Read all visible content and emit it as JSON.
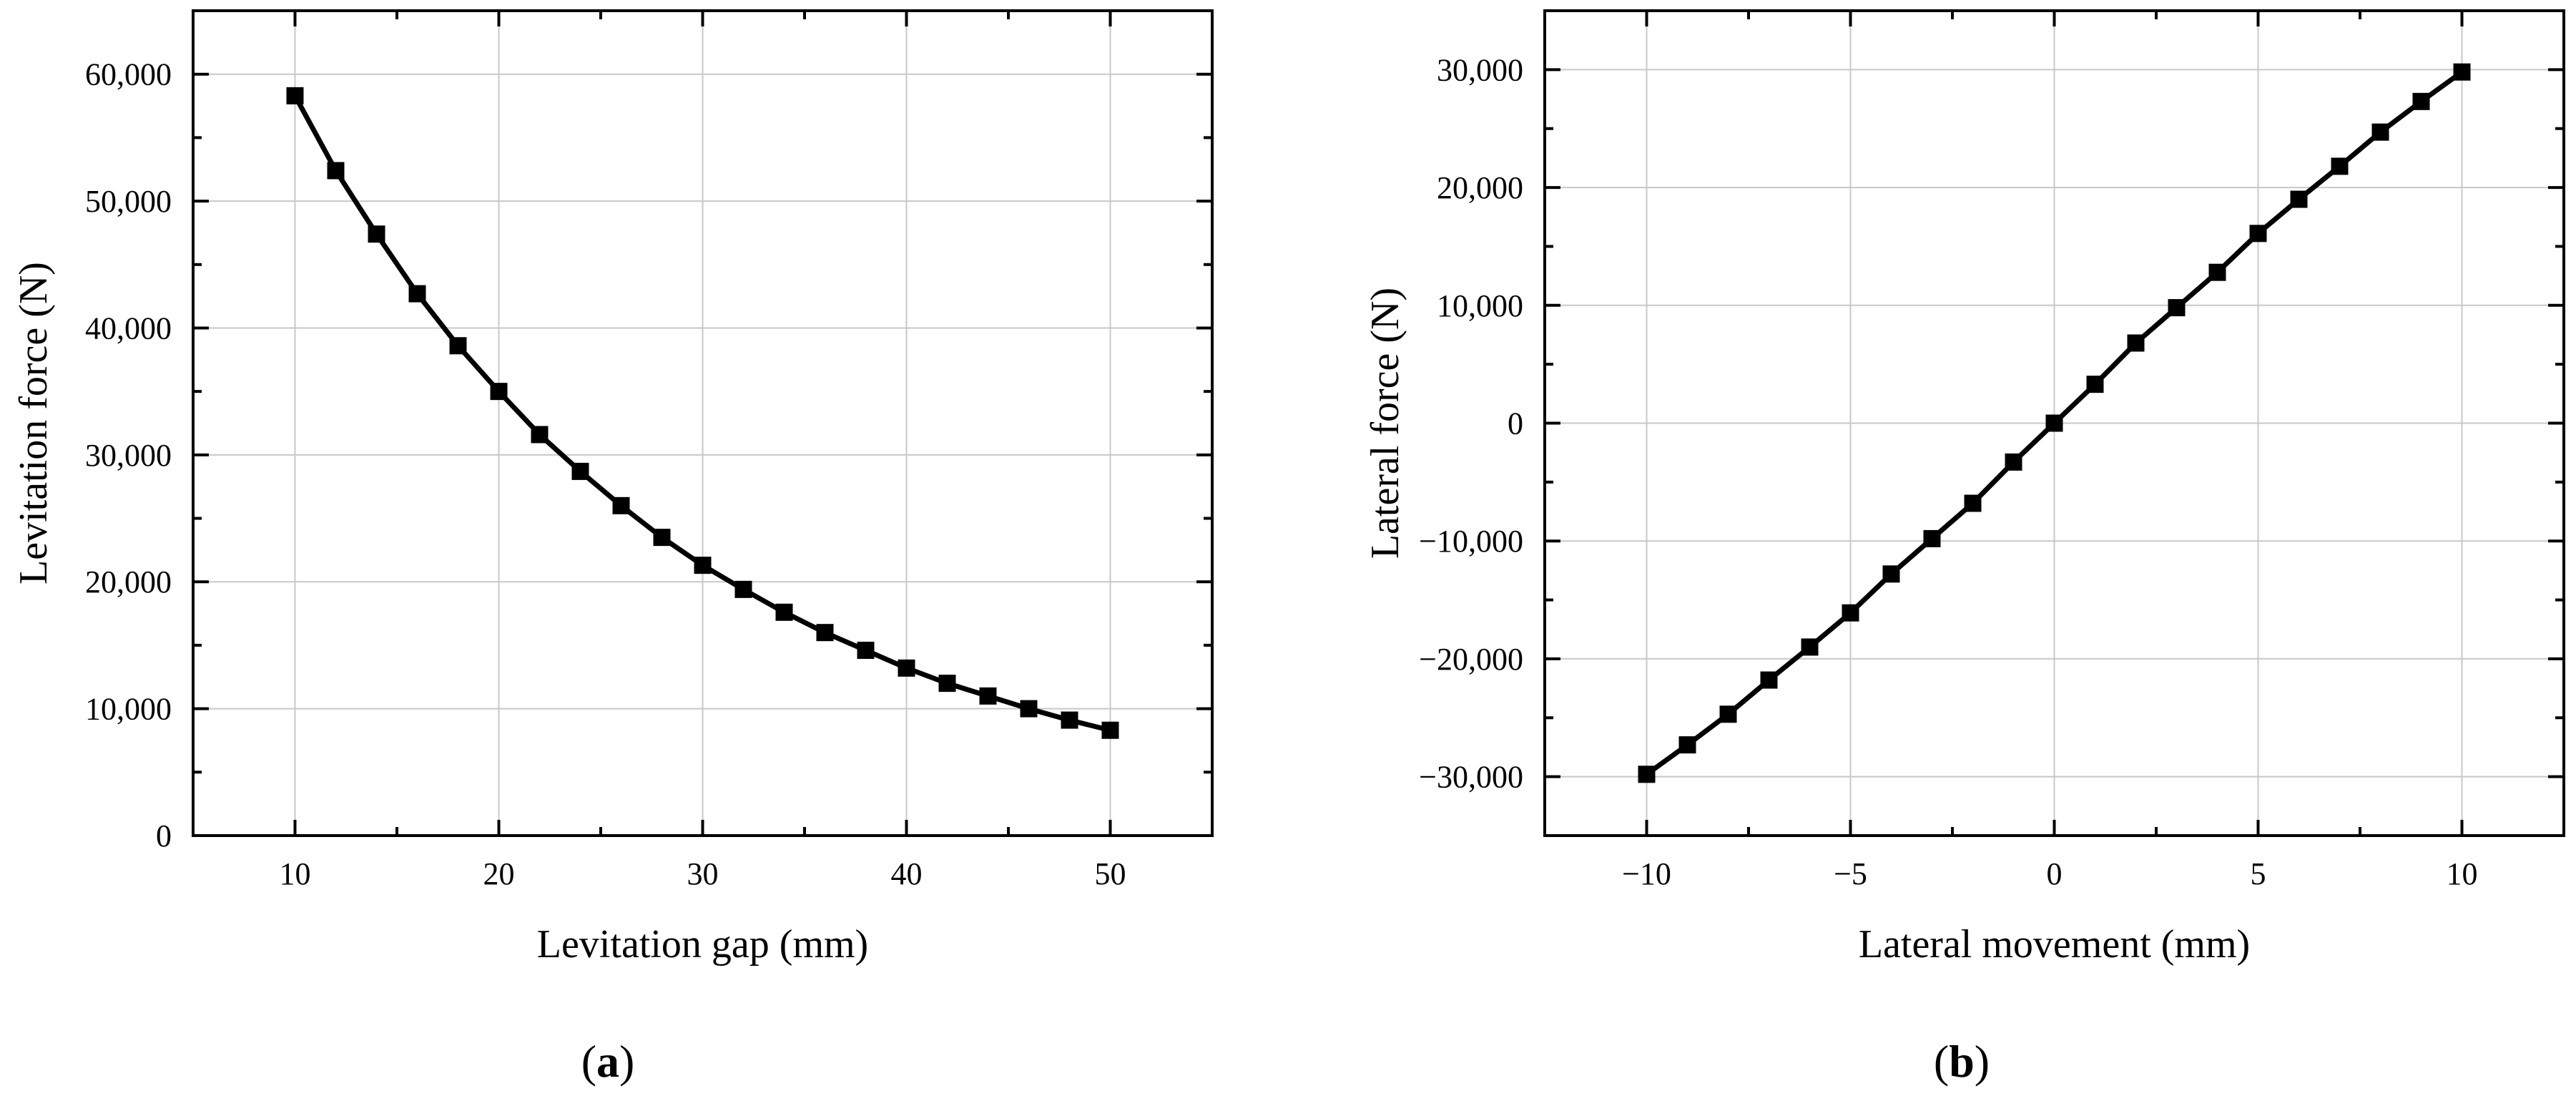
{
  "panel_labels": {
    "a": {
      "open": "(",
      "letter": "a",
      "close": ")"
    },
    "b": {
      "open": "(",
      "letter": "b",
      "close": ")"
    }
  },
  "chart_data": [
    {
      "id": "a",
      "type": "line",
      "title": "",
      "xlabel": "Levitation gap (mm)",
      "ylabel": "Levitation force (N)",
      "xlim": [
        5,
        55
      ],
      "ylim": [
        0,
        65000
      ],
      "xticks": [
        10,
        20,
        30,
        40,
        50
      ],
      "xtick_labels": [
        "10",
        "20",
        "30",
        "40",
        "50"
      ],
      "yticks": [
        0,
        10000,
        20000,
        30000,
        40000,
        50000,
        60000
      ],
      "ytick_labels": [
        "0",
        "10,000",
        "20,000",
        "30,000",
        "40,000",
        "50,000",
        "60,000"
      ],
      "grid": true,
      "marker": "square",
      "line_color": "#000000",
      "series": [
        {
          "x": [
            10,
            12,
            14,
            16,
            18,
            20,
            22,
            24,
            26,
            28,
            30,
            32,
            34,
            36,
            38,
            40,
            42,
            44,
            46,
            48,
            50
          ],
          "y": [
            58300,
            52400,
            47400,
            42700,
            38600,
            35000,
            31600,
            28700,
            26000,
            23500,
            21300,
            19400,
            17600,
            16000,
            14600,
            13200,
            12000,
            11000,
            10000,
            9100,
            8300
          ]
        }
      ]
    },
    {
      "id": "b",
      "type": "line",
      "title": "",
      "xlabel": "Lateral movement (mm)",
      "ylabel": "Lateral force (N)",
      "xlim": [
        -12.5,
        12.5
      ],
      "ylim": [
        -35000,
        35000
      ],
      "xticks": [
        -10,
        -5,
        0,
        5,
        10
      ],
      "xtick_labels": [
        "−10",
        "−5",
        "0",
        "5",
        "10"
      ],
      "yticks": [
        -30000,
        -20000,
        -10000,
        0,
        10000,
        20000,
        30000
      ],
      "ytick_labels": [
        "−30,000",
        "−20,000",
        "−10,000",
        "0",
        "10,000",
        "20,000",
        "30,000"
      ],
      "grid": true,
      "marker": "square",
      "line_color": "#000000",
      "series": [
        {
          "x": [
            -10,
            -9,
            -8,
            -7,
            -6,
            -5,
            -4,
            -3,
            -2,
            -1,
            0,
            1,
            2,
            3,
            4,
            5,
            6,
            7,
            8,
            9,
            10
          ],
          "y": [
            -29800,
            -27300,
            -24700,
            -21800,
            -19000,
            -16100,
            -12800,
            -9800,
            -6800,
            -3300,
            0,
            3300,
            6800,
            9800,
            12800,
            16100,
            19000,
            21800,
            24700,
            27300,
            29800
          ]
        }
      ]
    }
  ]
}
